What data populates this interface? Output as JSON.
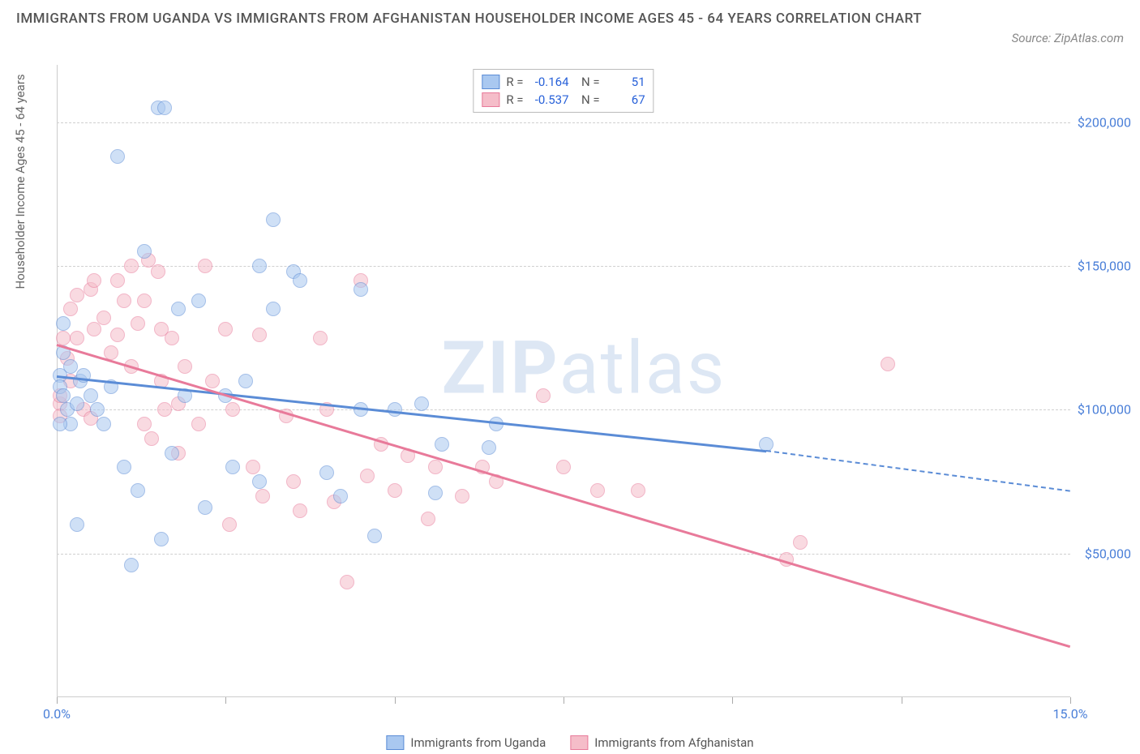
{
  "title": "IMMIGRANTS FROM UGANDA VS IMMIGRANTS FROM AFGHANISTAN HOUSEHOLDER INCOME AGES 45 - 64 YEARS CORRELATION CHART",
  "source": "Source: ZipAtlas.com",
  "y_axis_label": "Householder Income Ages 45 - 64 years",
  "watermark_bold": "ZIP",
  "watermark_light": "atlas",
  "watermark_color": "rgba(120,160,210,0.25)",
  "chart": {
    "type": "scatter",
    "xlim": [
      0,
      15
    ],
    "ylim": [
      0,
      220000
    ],
    "x_ticks": [
      0,
      2.5,
      5,
      7.5,
      10,
      12.5,
      15
    ],
    "x_tick_labels": {
      "0": "0.0%",
      "15": "15.0%"
    },
    "y_grid": [
      50000,
      100000,
      150000,
      200000
    ],
    "y_labels": [
      "$50,000",
      "$100,000",
      "$150,000",
      "$200,000"
    ],
    "background_color": "#ffffff",
    "grid_color": "#d0d0d0",
    "point_radius": 9,
    "point_border_width": 1,
    "point_opacity": 0.55
  },
  "series": [
    {
      "name": "Immigrants from Uganda",
      "color_fill": "#a9c8f0",
      "color_border": "#5b8cd6",
      "R": "-0.164",
      "N": "51",
      "trend": {
        "x1": 0,
        "y1": 112000,
        "x2": 10.5,
        "y2": 86000,
        "dash_x2": 15,
        "dash_y2": 72000
      },
      "points": [
        [
          0.05,
          112000
        ],
        [
          0.05,
          108000
        ],
        [
          0.1,
          120000
        ],
        [
          0.1,
          105000
        ],
        [
          0.1,
          130000
        ],
        [
          0.15,
          100000
        ],
        [
          0.2,
          115000
        ],
        [
          0.2,
          95000
        ],
        [
          0.3,
          102000
        ],
        [
          0.35,
          110000
        ],
        [
          0.4,
          112000
        ],
        [
          0.5,
          105000
        ],
        [
          0.6,
          100000
        ],
        [
          0.7,
          95000
        ],
        [
          0.9,
          188000
        ],
        [
          1.0,
          80000
        ],
        [
          1.1,
          46000
        ],
        [
          1.2,
          72000
        ],
        [
          1.3,
          155000
        ],
        [
          1.5,
          205000
        ],
        [
          1.6,
          205000
        ],
        [
          1.55,
          55000
        ],
        [
          1.7,
          85000
        ],
        [
          1.8,
          135000
        ],
        [
          1.9,
          105000
        ],
        [
          2.1,
          138000
        ],
        [
          2.2,
          66000
        ],
        [
          2.5,
          105000
        ],
        [
          2.6,
          80000
        ],
        [
          2.8,
          110000
        ],
        [
          3.0,
          150000
        ],
        [
          3.0,
          75000
        ],
        [
          3.2,
          135000
        ],
        [
          3.2,
          166000
        ],
        [
          3.5,
          148000
        ],
        [
          3.6,
          145000
        ],
        [
          4.0,
          78000
        ],
        [
          4.2,
          70000
        ],
        [
          4.5,
          100000
        ],
        [
          4.5,
          142000
        ],
        [
          4.7,
          56000
        ],
        [
          5.0,
          100000
        ],
        [
          5.4,
          102000
        ],
        [
          5.6,
          71000
        ],
        [
          5.7,
          88000
        ],
        [
          6.4,
          87000
        ],
        [
          6.5,
          95000
        ],
        [
          10.5,
          88000
        ],
        [
          0.05,
          95000
        ],
        [
          0.3,
          60000
        ],
        [
          0.8,
          108000
        ]
      ]
    },
    {
      "name": "Immigrants from Afghanistan",
      "color_fill": "#f5bdc9",
      "color_border": "#e87a9a",
      "R": "-0.537",
      "N": "67",
      "trend": {
        "x1": 0,
        "y1": 123000,
        "x2": 15,
        "y2": 18000
      },
      "points": [
        [
          0.05,
          102000
        ],
        [
          0.05,
          98000
        ],
        [
          0.1,
          125000
        ],
        [
          0.15,
          118000
        ],
        [
          0.2,
          110000
        ],
        [
          0.2,
          135000
        ],
        [
          0.3,
          125000
        ],
        [
          0.3,
          140000
        ],
        [
          0.4,
          100000
        ],
        [
          0.5,
          142000
        ],
        [
          0.5,
          97000
        ],
        [
          0.55,
          128000
        ],
        [
          0.55,
          145000
        ],
        [
          0.7,
          132000
        ],
        [
          0.8,
          120000
        ],
        [
          0.9,
          126000
        ],
        [
          0.9,
          145000
        ],
        [
          1.0,
          138000
        ],
        [
          1.1,
          115000
        ],
        [
          1.1,
          150000
        ],
        [
          1.2,
          130000
        ],
        [
          1.3,
          95000
        ],
        [
          1.3,
          138000
        ],
        [
          1.35,
          152000
        ],
        [
          1.4,
          90000
        ],
        [
          1.5,
          148000
        ],
        [
          1.55,
          110000
        ],
        [
          1.55,
          128000
        ],
        [
          1.6,
          100000
        ],
        [
          1.7,
          125000
        ],
        [
          1.8,
          85000
        ],
        [
          1.8,
          102000
        ],
        [
          1.9,
          115000
        ],
        [
          2.1,
          95000
        ],
        [
          2.2,
          150000
        ],
        [
          2.3,
          110000
        ],
        [
          2.5,
          128000
        ],
        [
          2.55,
          60000
        ],
        [
          2.6,
          100000
        ],
        [
          2.9,
          80000
        ],
        [
          3.0,
          126000
        ],
        [
          3.05,
          70000
        ],
        [
          3.4,
          98000
        ],
        [
          3.5,
          75000
        ],
        [
          3.6,
          65000
        ],
        [
          3.9,
          125000
        ],
        [
          4.0,
          100000
        ],
        [
          4.1,
          68000
        ],
        [
          4.3,
          40000
        ],
        [
          4.5,
          145000
        ],
        [
          4.6,
          77000
        ],
        [
          4.8,
          88000
        ],
        [
          5.0,
          72000
        ],
        [
          5.2,
          84000
        ],
        [
          5.5,
          62000
        ],
        [
          5.6,
          80000
        ],
        [
          6.0,
          70000
        ],
        [
          6.3,
          80000
        ],
        [
          6.5,
          75000
        ],
        [
          7.2,
          105000
        ],
        [
          7.5,
          80000
        ],
        [
          8.0,
          72000
        ],
        [
          8.6,
          72000
        ],
        [
          10.8,
          48000
        ],
        [
          11.0,
          54000
        ],
        [
          12.3,
          116000
        ],
        [
          0.05,
          105000
        ]
      ]
    }
  ]
}
